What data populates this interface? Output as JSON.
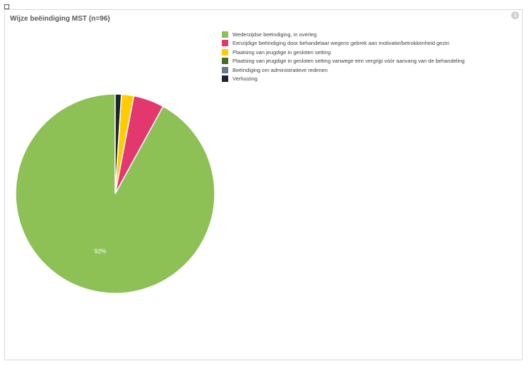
{
  "chart_data": {
    "type": "pie",
    "title": "Wijze beëindiging MST (n=96)",
    "categories": [
      "Wederzijdse beëindiging, in overleg",
      "Eenzijdige beëindiging door behandelaar wegens gebrek aan motivatie/betrokkenheid gezin",
      "Plaatsing van jeugdige in gesloten setting",
      "Plaatsing van jeugdige in gesloten setting vanwege een vergrijp vóór aanvang van de behandeling",
      "Beëindiging om administratieve redenen",
      "Verhuizing"
    ],
    "values": [
      92,
      5,
      2,
      0,
      0,
      1
    ],
    "colors": [
      "#8dc055",
      "#e3386e",
      "#ffcc00",
      "#4a6b24",
      "#677a8a",
      "#1a2432"
    ],
    "data_labels": [
      "92%",
      "",
      "",
      "",
      "",
      ""
    ],
    "legend_position": "top-right"
  }
}
